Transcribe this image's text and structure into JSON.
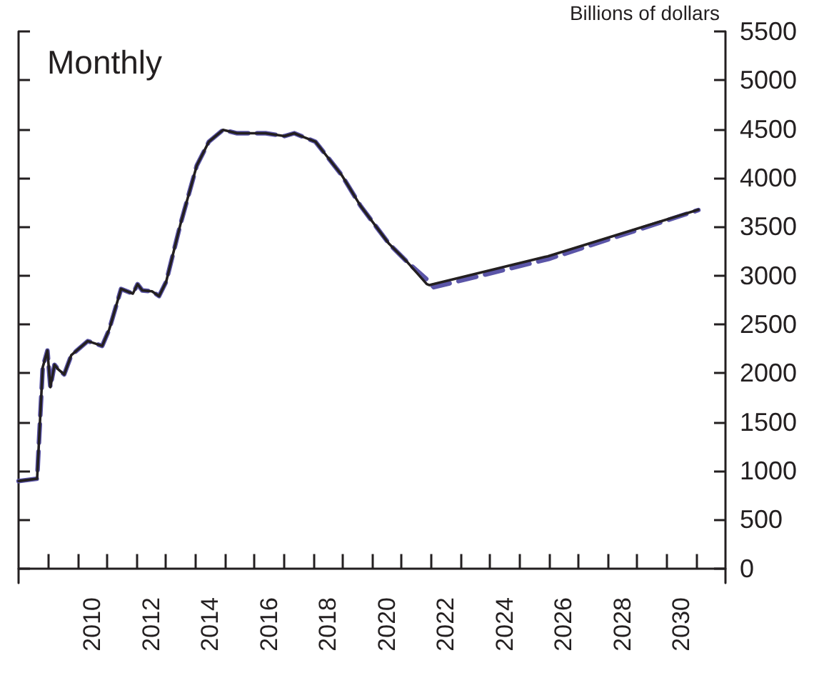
{
  "chart_data": {
    "type": "line",
    "ylabel": "Billions of dollars",
    "annotations": [
      "Monthly"
    ],
    "xlim": [
      2008,
      2032
    ],
    "xticks": [
      {
        "value": 2009,
        "label": null
      },
      {
        "value": 2010,
        "label": null
      },
      {
        "value": 2011,
        "label": null
      },
      {
        "value": 2012,
        "label": null
      },
      {
        "value": 2013,
        "label": null
      },
      {
        "value": 2014,
        "label": null
      },
      {
        "value": 2015,
        "label": null
      },
      {
        "value": 2016,
        "label": null
      },
      {
        "value": 2017,
        "label": null
      },
      {
        "value": 2018,
        "label": null
      },
      {
        "value": 2019,
        "label": null
      },
      {
        "value": 2020,
        "label": null
      },
      {
        "value": 2021,
        "label": null
      },
      {
        "value": 2022,
        "label": null
      },
      {
        "value": 2023,
        "label": null
      },
      {
        "value": 2024,
        "label": null
      },
      {
        "value": 2025,
        "label": null
      },
      {
        "value": 2026,
        "label": null
      },
      {
        "value": 2027,
        "label": null
      },
      {
        "value": 2028,
        "label": null
      },
      {
        "value": 2029,
        "label": null
      },
      {
        "value": 2030,
        "label": null
      },
      {
        "value": 2031,
        "label": null
      },
      {
        "value": 2010.5,
        "label": "2010"
      },
      {
        "value": 2012.5,
        "label": "2012"
      },
      {
        "value": 2014.5,
        "label": "2014"
      },
      {
        "value": 2016.5,
        "label": "2016"
      },
      {
        "value": 2018.5,
        "label": "2018"
      },
      {
        "value": 2020.5,
        "label": "2020"
      },
      {
        "value": 2022.5,
        "label": "2022"
      },
      {
        "value": 2024.5,
        "label": "2024"
      },
      {
        "value": 2026.5,
        "label": "2026"
      },
      {
        "value": 2028.5,
        "label": "2028"
      },
      {
        "value": 2030.5,
        "label": "2030"
      }
    ],
    "ylim": [
      -150,
      5500
    ],
    "yticks": [
      0,
      500,
      1000,
      1500,
      2000,
      2500,
      3000,
      3500,
      4000,
      4500,
      5000,
      5500
    ],
    "grid": false,
    "marker": "none",
    "series": [
      {
        "color": "#5b55a8",
        "line_style": "dashed",
        "x": [
          2008.0,
          2008.63,
          2008.82,
          2008.98,
          2009.08,
          2009.22,
          2009.35,
          2009.55,
          2009.79,
          2010.35,
          2010.84,
          2011.08,
          2011.48,
          2011.88,
          2012.04,
          2012.2,
          2012.53,
          2012.77,
          2013.01,
          2013.49,
          2014.05,
          2014.46,
          2014.94,
          2015.42,
          2016.39,
          2017.03,
          2017.36,
          2017.68,
          2018.08,
          2018.97,
          2019.61,
          2020.58,
          2021.22,
          2021.86,
          2022.1,
          2026.0,
          2031.08
        ],
        "values": [
          894,
          918,
          2060,
          2231,
          1856,
          2085,
          2037,
          1987,
          2183,
          2328,
          2279,
          2449,
          2862,
          2814,
          2911,
          2847,
          2838,
          2789,
          2935,
          3518,
          4126,
          4370,
          4491,
          4457,
          4457,
          4428,
          4457,
          4418,
          4370,
          4029,
          3713,
          3324,
          3130,
          2960,
          2880,
          3170,
          3670
        ]
      },
      {
        "color": "#231f20",
        "line_style": "solid",
        "x": [
          2008.0,
          2008.63,
          2008.82,
          2008.98,
          2009.08,
          2009.22,
          2009.35,
          2009.55,
          2009.79,
          2010.35,
          2010.84,
          2011.08,
          2011.48,
          2011.88,
          2012.04,
          2012.2,
          2012.53,
          2012.77,
          2013.01,
          2013.49,
          2014.05,
          2014.46,
          2014.94,
          2015.42,
          2016.39,
          2017.03,
          2017.36,
          2017.68,
          2018.08,
          2018.97,
          2019.61,
          2020.58,
          2021.22,
          2021.86,
          2021.95,
          2025.97,
          2031.08
        ],
        "values": [
          894,
          918,
          2060,
          2231,
          1856,
          2085,
          2037,
          1987,
          2183,
          2328,
          2279,
          2449,
          2862,
          2814,
          2911,
          2847,
          2838,
          2789,
          2935,
          3518,
          4126,
          4370,
          4491,
          4457,
          4457,
          4428,
          4457,
          4418,
          4370,
          4029,
          3713,
          3324,
          3130,
          2912,
          2901,
          3197,
          3674
        ]
      }
    ]
  }
}
